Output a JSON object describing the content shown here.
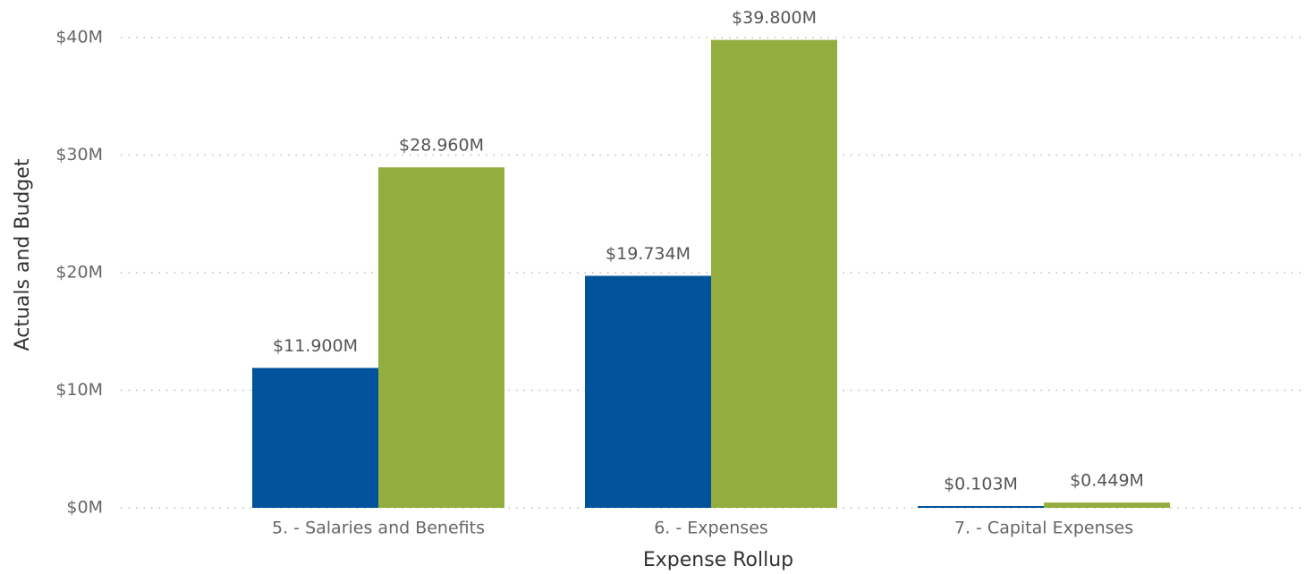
{
  "chart_data": {
    "type": "bar",
    "x_label": "Expense Rollup",
    "y_label": "Actuals and Budget",
    "categories": [
      "5. - Salaries and Benefits",
      "6. - Expenses",
      "7. - Capital Expenses"
    ],
    "series": [
      {
        "color": "#00539b",
        "values": [
          11.9,
          19.734,
          0.103
        ],
        "value_labels": [
          "$11.900M",
          "$19.734M",
          "$0.103M"
        ]
      },
      {
        "color": "#93ad3f",
        "values": [
          28.96,
          39.8,
          0.449
        ],
        "value_labels": [
          "$28.960M",
          "$39.800M",
          "$0.449M"
        ]
      }
    ],
    "ylim": [
      0,
      40
    ],
    "yticks": [
      {
        "value": 0,
        "label": "$0M"
      },
      {
        "value": 10,
        "label": "$10M"
      },
      {
        "value": 20,
        "label": "$20M"
      },
      {
        "value": 30,
        "label": "$30M"
      },
      {
        "value": 40,
        "label": "$40M"
      }
    ],
    "grid": true
  }
}
